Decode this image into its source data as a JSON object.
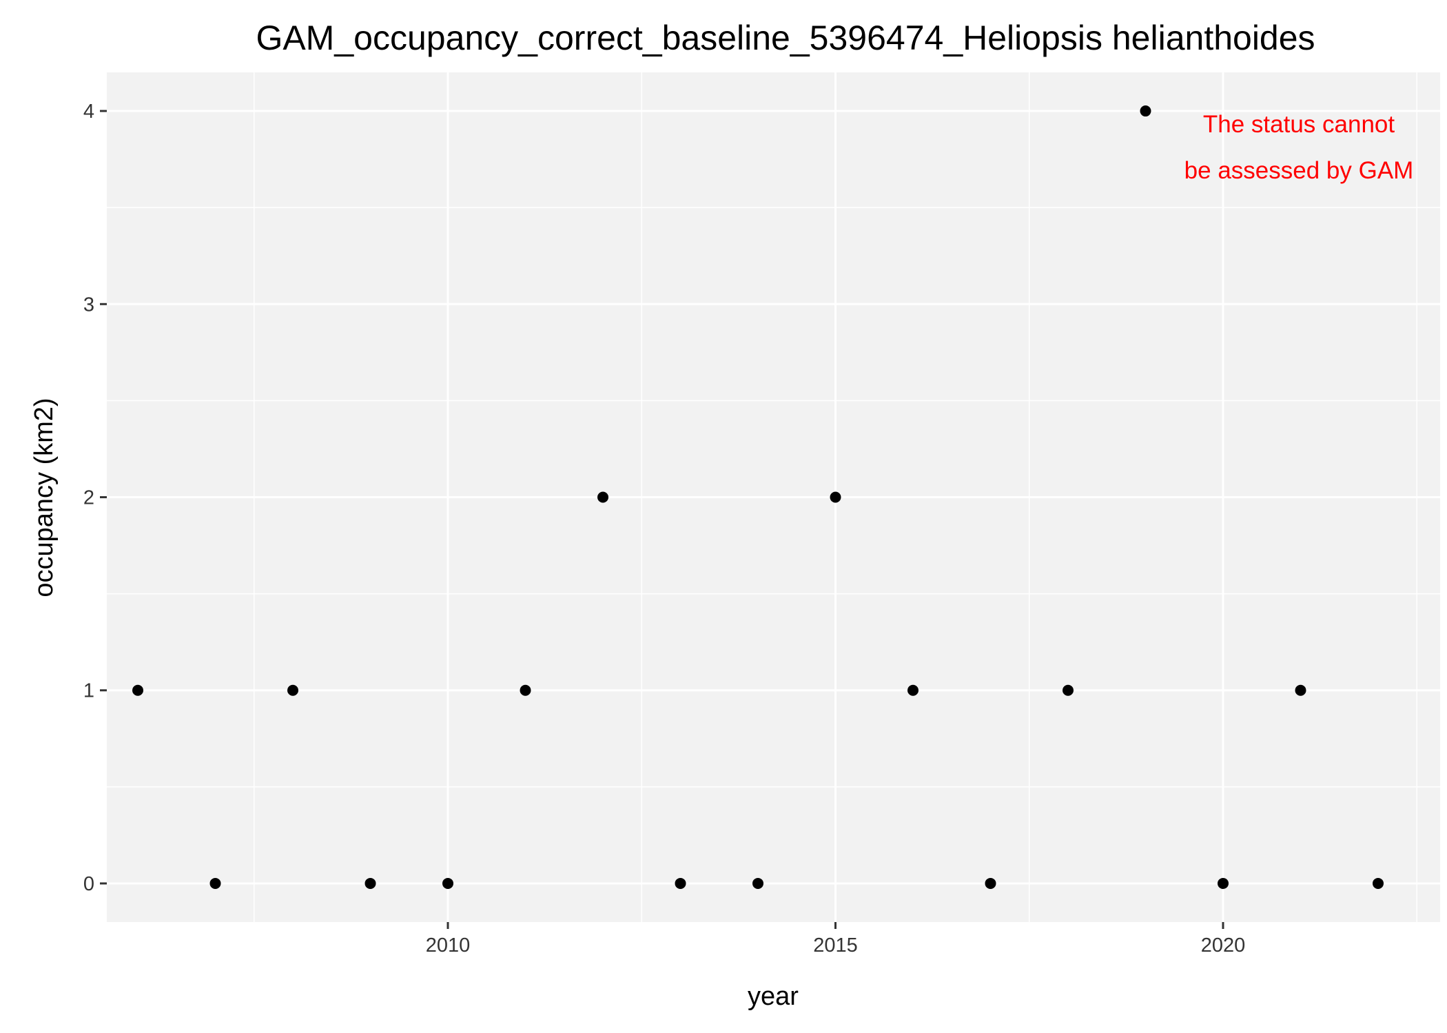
{
  "chart_data": {
    "type": "scatter",
    "title": "GAM_occupancy_correct_baseline_5396474_Heliopsis helianthoides",
    "xlabel": "year",
    "ylabel": "occupancy (km2)",
    "xlim": [
      2005.6,
      2022.8
    ],
    "ylim": [
      -0.2,
      4.2
    ],
    "x_major_ticks": [
      2010,
      2015,
      2020
    ],
    "x_tick_labels": [
      "2010",
      "2015",
      "2020"
    ],
    "y_major_ticks": [
      0,
      1,
      2,
      3,
      4
    ],
    "y_tick_labels": [
      "0",
      "1",
      "2",
      "3",
      "4"
    ],
    "grid": true,
    "points": [
      {
        "x": 2006,
        "y": 1
      },
      {
        "x": 2007,
        "y": 0
      },
      {
        "x": 2008,
        "y": 1
      },
      {
        "x": 2009,
        "y": 0
      },
      {
        "x": 2010,
        "y": 0
      },
      {
        "x": 2011,
        "y": 1
      },
      {
        "x": 2012,
        "y": 2
      },
      {
        "x": 2013,
        "y": 0
      },
      {
        "x": 2014,
        "y": 0
      },
      {
        "x": 2015,
        "y": 2
      },
      {
        "x": 2016,
        "y": 1
      },
      {
        "x": 2017,
        "y": 0
      },
      {
        "x": 2018,
        "y": 1
      },
      {
        "x": 2019,
        "y": 4
      },
      {
        "x": 2020,
        "y": 0
      },
      {
        "x": 2021,
        "y": 1
      },
      {
        "x": 2022,
        "y": 0
      }
    ],
    "annotation": {
      "lines": [
        "The status cannot",
        "be assessed by GAM"
      ],
      "color": "#ff0000"
    },
    "colors": {
      "panel": "#f2f2f2",
      "grid": "#ffffff",
      "point": "#000000",
      "tick": "#333333"
    }
  }
}
